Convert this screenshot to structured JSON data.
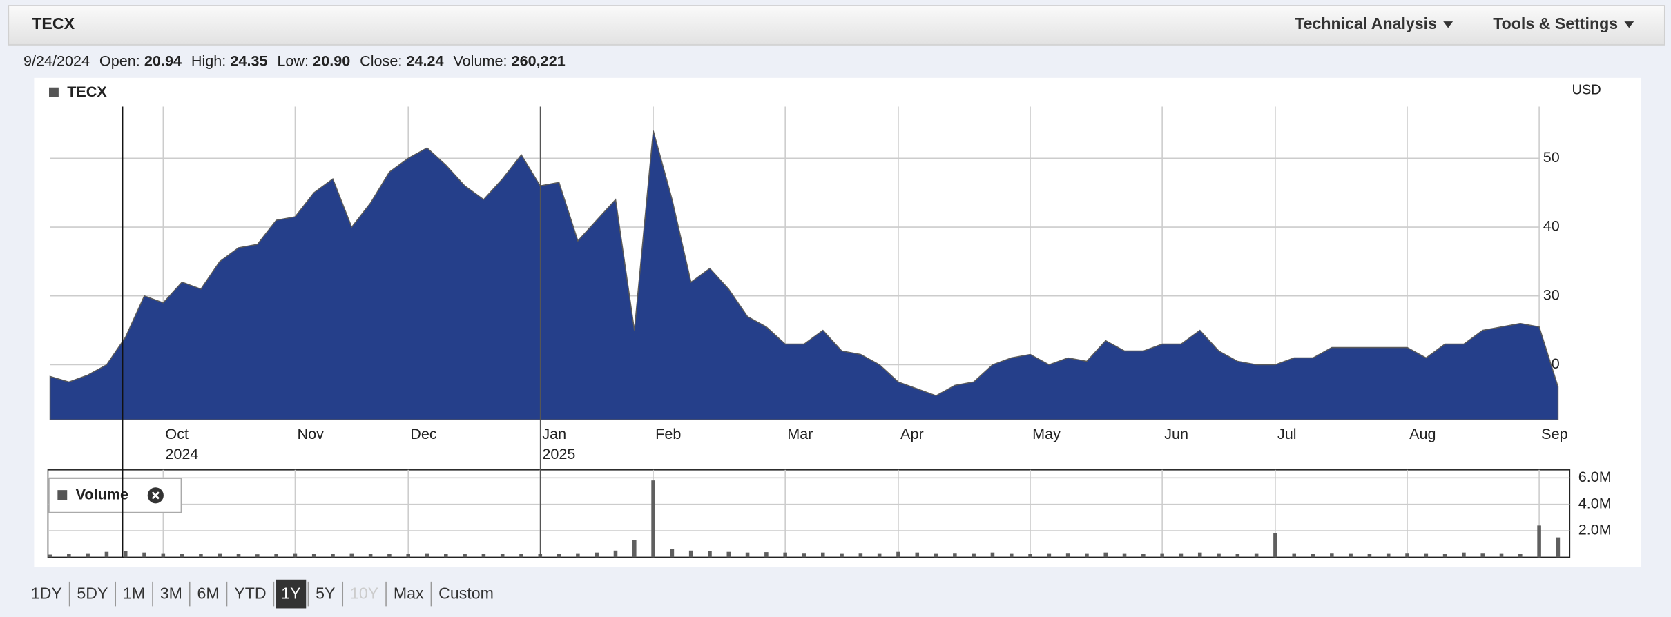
{
  "header": {
    "symbol": "TECX",
    "menus": [
      "Technical Analysis",
      "Tools & Settings"
    ]
  },
  "quote": {
    "date": "9/24/2024",
    "fields": [
      {
        "label": "Open:",
        "value": "20.94"
      },
      {
        "label": "High:",
        "value": "24.35"
      },
      {
        "label": "Low:",
        "value": "20.90"
      },
      {
        "label": "Close:",
        "value": "24.24"
      },
      {
        "label": "Volume:",
        "value": "260,221"
      }
    ]
  },
  "chart_data": [
    {
      "type": "area",
      "legend": "TECX",
      "unit": "USD",
      "color": "#253f8a",
      "grid": true,
      "categories": [
        null,
        null,
        null,
        null,
        null,
        null,
        "Oct\n2024",
        null,
        null,
        null,
        null,
        null,
        null,
        "Nov",
        null,
        null,
        null,
        null,
        null,
        "Dec",
        null,
        null,
        null,
        null,
        null,
        null,
        "Jan\n2025",
        null,
        null,
        null,
        null,
        null,
        "Feb",
        null,
        null,
        null,
        null,
        null,
        null,
        "Mar",
        null,
        null,
        null,
        null,
        null,
        "Apr",
        null,
        null,
        null,
        null,
        null,
        null,
        "May",
        null,
        null,
        null,
        null,
        null,
        null,
        "Jun",
        null,
        null,
        null,
        null,
        null,
        "Jul",
        null,
        null,
        null,
        null,
        null,
        null,
        "Aug",
        null,
        null,
        null,
        null,
        null,
        null,
        "Sep",
        null
      ],
      "values": [
        18.3,
        17.5,
        18.5,
        20,
        24,
        30,
        29,
        32,
        31,
        35,
        37,
        37.5,
        41,
        41.5,
        45,
        47,
        40,
        43.5,
        48,
        50,
        51.5,
        49,
        46,
        44,
        47,
        50.5,
        46,
        46.5,
        38,
        41,
        44,
        25,
        54,
        44,
        32,
        34,
        31,
        27,
        25.5,
        23,
        23,
        25,
        22,
        21.5,
        20,
        17.5,
        16.5,
        15.5,
        17,
        17.5,
        20,
        21,
        21.5,
        20,
        21,
        20.5,
        23.5,
        22,
        22,
        23,
        23,
        25,
        22,
        20.5,
        20,
        20,
        21,
        21,
        22.5,
        22.5,
        22.5,
        22.5,
        22.5,
        21,
        23,
        23,
        25,
        25.5,
        26,
        25.5,
        16.8
      ],
      "ylim": [
        12,
        57.5
      ],
      "yticks": [
        20,
        30,
        40,
        50
      ]
    },
    {
      "type": "bar",
      "legend": "Volume",
      "color": "#5f5f5f",
      "grid": true,
      "values": [
        200000,
        250000,
        300000,
        400000,
        450000,
        350000,
        300000,
        250000,
        280000,
        300000,
        250000,
        220000,
        260000,
        300000,
        280000,
        250000,
        300000,
        260000,
        240000,
        280000,
        300000,
        260000,
        240000,
        250000,
        260000,
        280000,
        240000,
        260000,
        300000,
        350000,
        500000,
        1300000,
        5800000,
        600000,
        500000,
        450000,
        400000,
        350000,
        380000,
        350000,
        320000,
        350000,
        300000,
        320000,
        300000,
        400000,
        350000,
        300000,
        320000,
        300000,
        350000,
        300000,
        280000,
        300000,
        320000,
        300000,
        350000,
        300000,
        280000,
        300000,
        300000,
        350000,
        300000,
        280000,
        300000,
        1800000,
        300000,
        280000,
        320000,
        300000,
        280000,
        300000,
        320000,
        300000,
        280000,
        350000,
        320000,
        300000,
        280000,
        2400000,
        1500000
      ],
      "ylim": [
        0,
        6600000
      ],
      "yticks": [
        {
          "value": 2000000,
          "label": "2.0M"
        },
        {
          "value": 4000000,
          "label": "4.0M"
        },
        {
          "value": 6000000,
          "label": "6.0M"
        }
      ]
    }
  ],
  "ranges": {
    "buttons": [
      "1DY",
      "5DY",
      "1M",
      "3M",
      "6M",
      "YTD",
      "1Y",
      "5Y",
      "10Y",
      "Max",
      "Custom"
    ],
    "selected_index": 6,
    "disabled_index": [
      8
    ]
  }
}
